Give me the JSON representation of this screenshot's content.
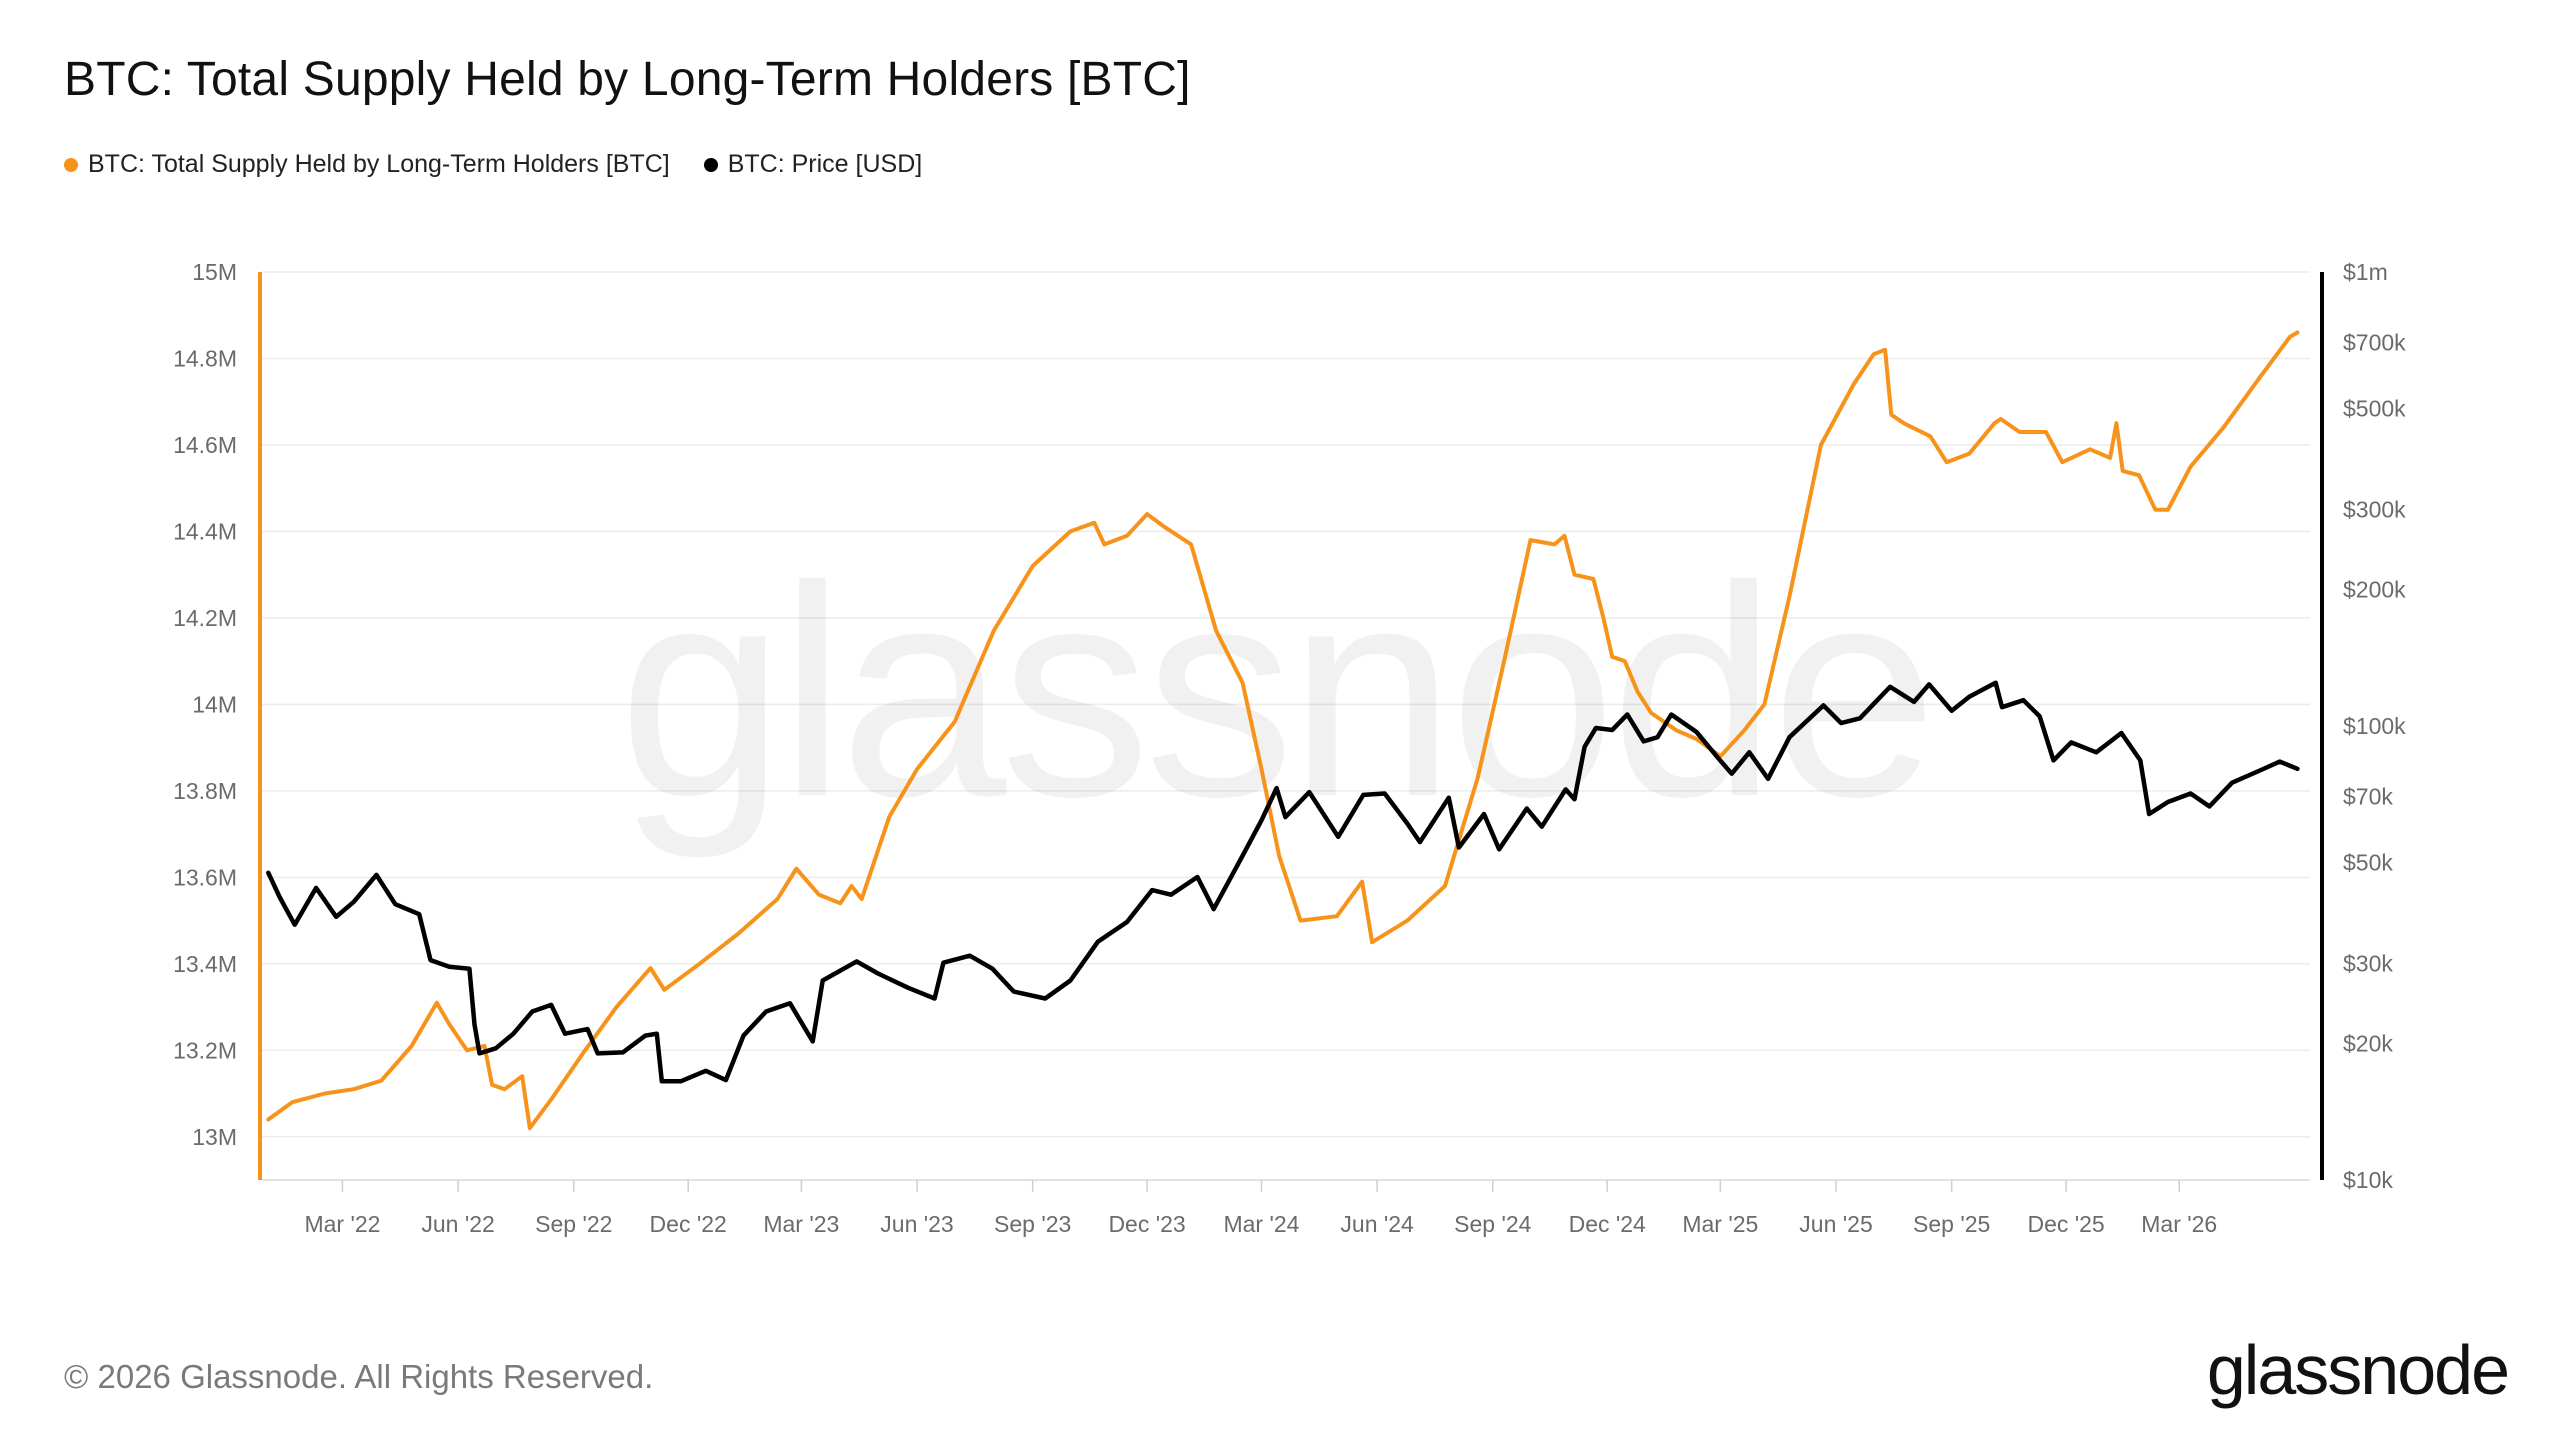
{
  "title": "BTC: Total Supply Held by Long-Term Holders [BTC]",
  "legend": [
    {
      "label": "BTC: Total Supply Held by Long-Term Holders [BTC]",
      "color": "#f7931a"
    },
    {
      "label": "BTC: Price [USD]",
      "color": "#000000"
    }
  ],
  "footer": "© 2026 Glassnode. All Rights Reserved.",
  "brand": "glassnode",
  "watermark": "glassnode",
  "chart_data": {
    "type": "line",
    "title": "BTC: Total Supply Held by Long-Term Holders [BTC]",
    "x_ticks": [
      "Mar '22",
      "Jun '22",
      "Sep '22",
      "Dec '22",
      "Mar '23",
      "Jun '23",
      "Sep '23",
      "Dec '23",
      "Mar '24",
      "Jun '24",
      "Sep '24",
      "Dec '24",
      "Mar '25",
      "Jun '25",
      "Sep '25",
      "Dec '25",
      "Mar '26"
    ],
    "xlim": [
      "2021-12-27",
      "2026-06-13"
    ],
    "y_left": {
      "ticks": [
        13000000,
        13200000,
        13400000,
        13600000,
        13800000,
        14000000,
        14200000,
        14400000,
        14600000,
        14800000,
        15000000
      ],
      "labels": [
        "13M",
        "13.2M",
        "13.4M",
        "13.6M",
        "13.8M",
        "14M",
        "14.2M",
        "14.4M",
        "14.6M",
        "14.8M",
        "15M"
      ],
      "range": [
        12900000,
        15000000
      ]
    },
    "y_right": {
      "scale": "log",
      "ticks": [
        10000,
        20000,
        30000,
        50000,
        70000,
        100000,
        200000,
        300000,
        500000,
        700000,
        1000000
      ],
      "labels": [
        "$10k",
        "$20k",
        "$30k",
        "$50k",
        "$70k",
        "$100k",
        "$200k",
        "$300k",
        "$500k",
        "$700k",
        "$1m"
      ],
      "range": [
        10000,
        1000000
      ]
    },
    "grid": true,
    "legend_position": "top-left",
    "series": [
      {
        "name": "BTC: Total Supply Held by Long-Term Holders [BTC]",
        "axis": "left",
        "color": "#f7931a",
        "points": [
          [
            "2022-01-01",
            13040000
          ],
          [
            "2022-01-20",
            13080000
          ],
          [
            "2022-02-15",
            13100000
          ],
          [
            "2022-03-10",
            13110000
          ],
          [
            "2022-04-01",
            13130000
          ],
          [
            "2022-04-25",
            13210000
          ],
          [
            "2022-05-15",
            13310000
          ],
          [
            "2022-05-25",
            13260000
          ],
          [
            "2022-06-08",
            13200000
          ],
          [
            "2022-06-22",
            13210000
          ],
          [
            "2022-06-28",
            13120000
          ],
          [
            "2022-07-08",
            13110000
          ],
          [
            "2022-07-22",
            13140000
          ],
          [
            "2022-07-28",
            13020000
          ],
          [
            "2022-08-15",
            13090000
          ],
          [
            "2022-09-10",
            13200000
          ],
          [
            "2022-10-05",
            13300000
          ],
          [
            "2022-11-01",
            13390000
          ],
          [
            "2022-11-12",
            13340000
          ],
          [
            "2022-12-10",
            13400000
          ],
          [
            "2023-01-10",
            13470000
          ],
          [
            "2023-02-10",
            13550000
          ],
          [
            "2023-02-25",
            13620000
          ],
          [
            "2023-03-15",
            13560000
          ],
          [
            "2023-04-01",
            13540000
          ],
          [
            "2023-04-10",
            13580000
          ],
          [
            "2023-04-18",
            13550000
          ],
          [
            "2023-05-10",
            13740000
          ],
          [
            "2023-06-01",
            13850000
          ],
          [
            "2023-07-01",
            13960000
          ],
          [
            "2023-08-01",
            14170000
          ],
          [
            "2023-09-01",
            14320000
          ],
          [
            "2023-10-01",
            14400000
          ],
          [
            "2023-10-20",
            14420000
          ],
          [
            "2023-10-28",
            14370000
          ],
          [
            "2023-11-15",
            14390000
          ],
          [
            "2023-12-01",
            14440000
          ],
          [
            "2023-12-15",
            14410000
          ],
          [
            "2024-01-05",
            14370000
          ],
          [
            "2024-01-25",
            14170000
          ],
          [
            "2024-02-15",
            14050000
          ],
          [
            "2024-03-01",
            13850000
          ],
          [
            "2024-03-15",
            13650000
          ],
          [
            "2024-04-01",
            13500000
          ],
          [
            "2024-04-30",
            13510000
          ],
          [
            "2024-05-20",
            13590000
          ],
          [
            "2024-05-28",
            13450000
          ],
          [
            "2024-06-25",
            13500000
          ],
          [
            "2024-07-25",
            13580000
          ],
          [
            "2024-08-20",
            13830000
          ],
          [
            "2024-09-10",
            14100000
          ],
          [
            "2024-10-01",
            14380000
          ],
          [
            "2024-10-20",
            14370000
          ],
          [
            "2024-10-28",
            14390000
          ],
          [
            "2024-11-05",
            14300000
          ],
          [
            "2024-11-20",
            14290000
          ],
          [
            "2024-11-28",
            14200000
          ],
          [
            "2024-12-05",
            14110000
          ],
          [
            "2024-12-15",
            14100000
          ],
          [
            "2024-12-25",
            14030000
          ],
          [
            "2025-01-05",
            13980000
          ],
          [
            "2025-01-25",
            13940000
          ],
          [
            "2025-02-10",
            13920000
          ],
          [
            "2025-03-01",
            13880000
          ],
          [
            "2025-03-20",
            13940000
          ],
          [
            "2025-04-05",
            14000000
          ],
          [
            "2025-04-25",
            14250000
          ],
          [
            "2025-05-20",
            14600000
          ],
          [
            "2025-06-15",
            14740000
          ],
          [
            "2025-07-01",
            14810000
          ],
          [
            "2025-07-10",
            14820000
          ],
          [
            "2025-07-15",
            14670000
          ],
          [
            "2025-07-25",
            14650000
          ],
          [
            "2025-08-15",
            14620000
          ],
          [
            "2025-08-28",
            14560000
          ],
          [
            "2025-09-15",
            14580000
          ],
          [
            "2025-10-05",
            14650000
          ],
          [
            "2025-10-10",
            14660000
          ],
          [
            "2025-10-25",
            14630000
          ],
          [
            "2025-11-15",
            14630000
          ],
          [
            "2025-11-28",
            14560000
          ],
          [
            "2025-12-20",
            14590000
          ],
          [
            "2026-01-05",
            14570000
          ],
          [
            "2026-01-10",
            14650000
          ],
          [
            "2026-01-15",
            14540000
          ],
          [
            "2026-01-28",
            14530000
          ],
          [
            "2026-02-10",
            14450000
          ],
          [
            "2026-02-20",
            14450000
          ],
          [
            "2026-03-10",
            14550000
          ],
          [
            "2026-04-05",
            14640000
          ],
          [
            "2026-05-05",
            14760000
          ],
          [
            "2026-05-28",
            14850000
          ],
          [
            "2026-06-03",
            14860000
          ]
        ]
      },
      {
        "name": "BTC: Price [USD]",
        "axis": "right",
        "color": "#000000",
        "points": [
          [
            "2022-01-01",
            47500
          ],
          [
            "2022-01-10",
            42000
          ],
          [
            "2022-01-22",
            36500
          ],
          [
            "2022-02-08",
            44000
          ],
          [
            "2022-02-24",
            38000
          ],
          [
            "2022-03-10",
            41000
          ],
          [
            "2022-03-28",
            47000
          ],
          [
            "2022-04-12",
            40500
          ],
          [
            "2022-05-01",
            38500
          ],
          [
            "2022-05-10",
            30500
          ],
          [
            "2022-05-25",
            29500
          ],
          [
            "2022-06-10",
            29200
          ],
          [
            "2022-06-14",
            22000
          ],
          [
            "2022-06-18",
            19000
          ],
          [
            "2022-07-01",
            19500
          ],
          [
            "2022-07-15",
            21000
          ],
          [
            "2022-07-30",
            23500
          ],
          [
            "2022-08-14",
            24300
          ],
          [
            "2022-08-25",
            21000
          ],
          [
            "2022-09-12",
            21500
          ],
          [
            "2022-09-20",
            19000
          ],
          [
            "2022-10-10",
            19100
          ],
          [
            "2022-10-28",
            20800
          ],
          [
            "2022-11-06",
            21000
          ],
          [
            "2022-11-10",
            16500
          ],
          [
            "2022-11-25",
            16500
          ],
          [
            "2022-12-15",
            17400
          ],
          [
            "2022-12-31",
            16600
          ],
          [
            "2023-01-14",
            20800
          ],
          [
            "2023-02-01",
            23500
          ],
          [
            "2023-02-20",
            24500
          ],
          [
            "2023-03-10",
            20200
          ],
          [
            "2023-03-18",
            27500
          ],
          [
            "2023-04-14",
            30300
          ],
          [
            "2023-05-01",
            28500
          ],
          [
            "2023-05-25",
            26500
          ],
          [
            "2023-06-15",
            25100
          ],
          [
            "2023-06-22",
            30100
          ],
          [
            "2023-07-13",
            31200
          ],
          [
            "2023-07-31",
            29200
          ],
          [
            "2023-08-17",
            26000
          ],
          [
            "2023-09-11",
            25100
          ],
          [
            "2023-10-01",
            27500
          ],
          [
            "2023-10-23",
            33500
          ],
          [
            "2023-11-15",
            37000
          ],
          [
            "2023-12-05",
            43500
          ],
          [
            "2023-12-20",
            42500
          ],
          [
            "2024-01-10",
            46500
          ],
          [
            "2024-01-23",
            39500
          ],
          [
            "2024-02-15",
            51800
          ],
          [
            "2024-03-01",
            62000
          ],
          [
            "2024-03-13",
            73000
          ],
          [
            "2024-03-20",
            63000
          ],
          [
            "2024-04-08",
            71500
          ],
          [
            "2024-05-01",
            57000
          ],
          [
            "2024-05-21",
            70500
          ],
          [
            "2024-06-07",
            71000
          ],
          [
            "2024-06-25",
            61000
          ],
          [
            "2024-07-05",
            55500
          ],
          [
            "2024-07-28",
            69500
          ],
          [
            "2024-08-05",
            54000
          ],
          [
            "2024-08-25",
            64000
          ],
          [
            "2024-09-06",
            53500
          ],
          [
            "2024-09-28",
            65800
          ],
          [
            "2024-10-10",
            60000
          ],
          [
            "2024-10-29",
            72500
          ],
          [
            "2024-11-05",
            69000
          ],
          [
            "2024-11-13",
            90000
          ],
          [
            "2024-11-22",
            99000
          ],
          [
            "2024-12-05",
            98000
          ],
          [
            "2024-12-17",
            106000
          ],
          [
            "2024-12-30",
            92500
          ],
          [
            "2025-01-10",
            94500
          ],
          [
            "2025-01-21",
            106000
          ],
          [
            "2025-02-10",
            97000
          ],
          [
            "2025-02-28",
            84500
          ],
          [
            "2025-03-10",
            78500
          ],
          [
            "2025-03-24",
            87500
          ],
          [
            "2025-04-08",
            76500
          ],
          [
            "2025-04-25",
            94500
          ],
          [
            "2025-05-22",
            111000
          ],
          [
            "2025-06-05",
            101500
          ],
          [
            "2025-06-20",
            104000
          ],
          [
            "2025-07-14",
            122000
          ],
          [
            "2025-08-02",
            113000
          ],
          [
            "2025-08-14",
            123500
          ],
          [
            "2025-09-01",
            108000
          ],
          [
            "2025-09-15",
            116000
          ],
          [
            "2025-10-06",
            124500
          ],
          [
            "2025-10-11",
            110000
          ],
          [
            "2025-10-28",
            114000
          ],
          [
            "2025-11-10",
            105000
          ],
          [
            "2025-11-21",
            84000
          ],
          [
            "2025-12-05",
            92000
          ],
          [
            "2025-12-25",
            87500
          ],
          [
            "2026-01-14",
            96500
          ],
          [
            "2026-01-29",
            84000
          ],
          [
            "2026-02-05",
            64000
          ],
          [
            "2026-02-20",
            68000
          ],
          [
            "2026-03-10",
            71000
          ],
          [
            "2026-03-25",
            66500
          ],
          [
            "2026-04-12",
            75000
          ],
          [
            "2026-05-05",
            80000
          ],
          [
            "2026-05-20",
            83500
          ],
          [
            "2026-06-03",
            80500
          ]
        ]
      }
    ]
  }
}
